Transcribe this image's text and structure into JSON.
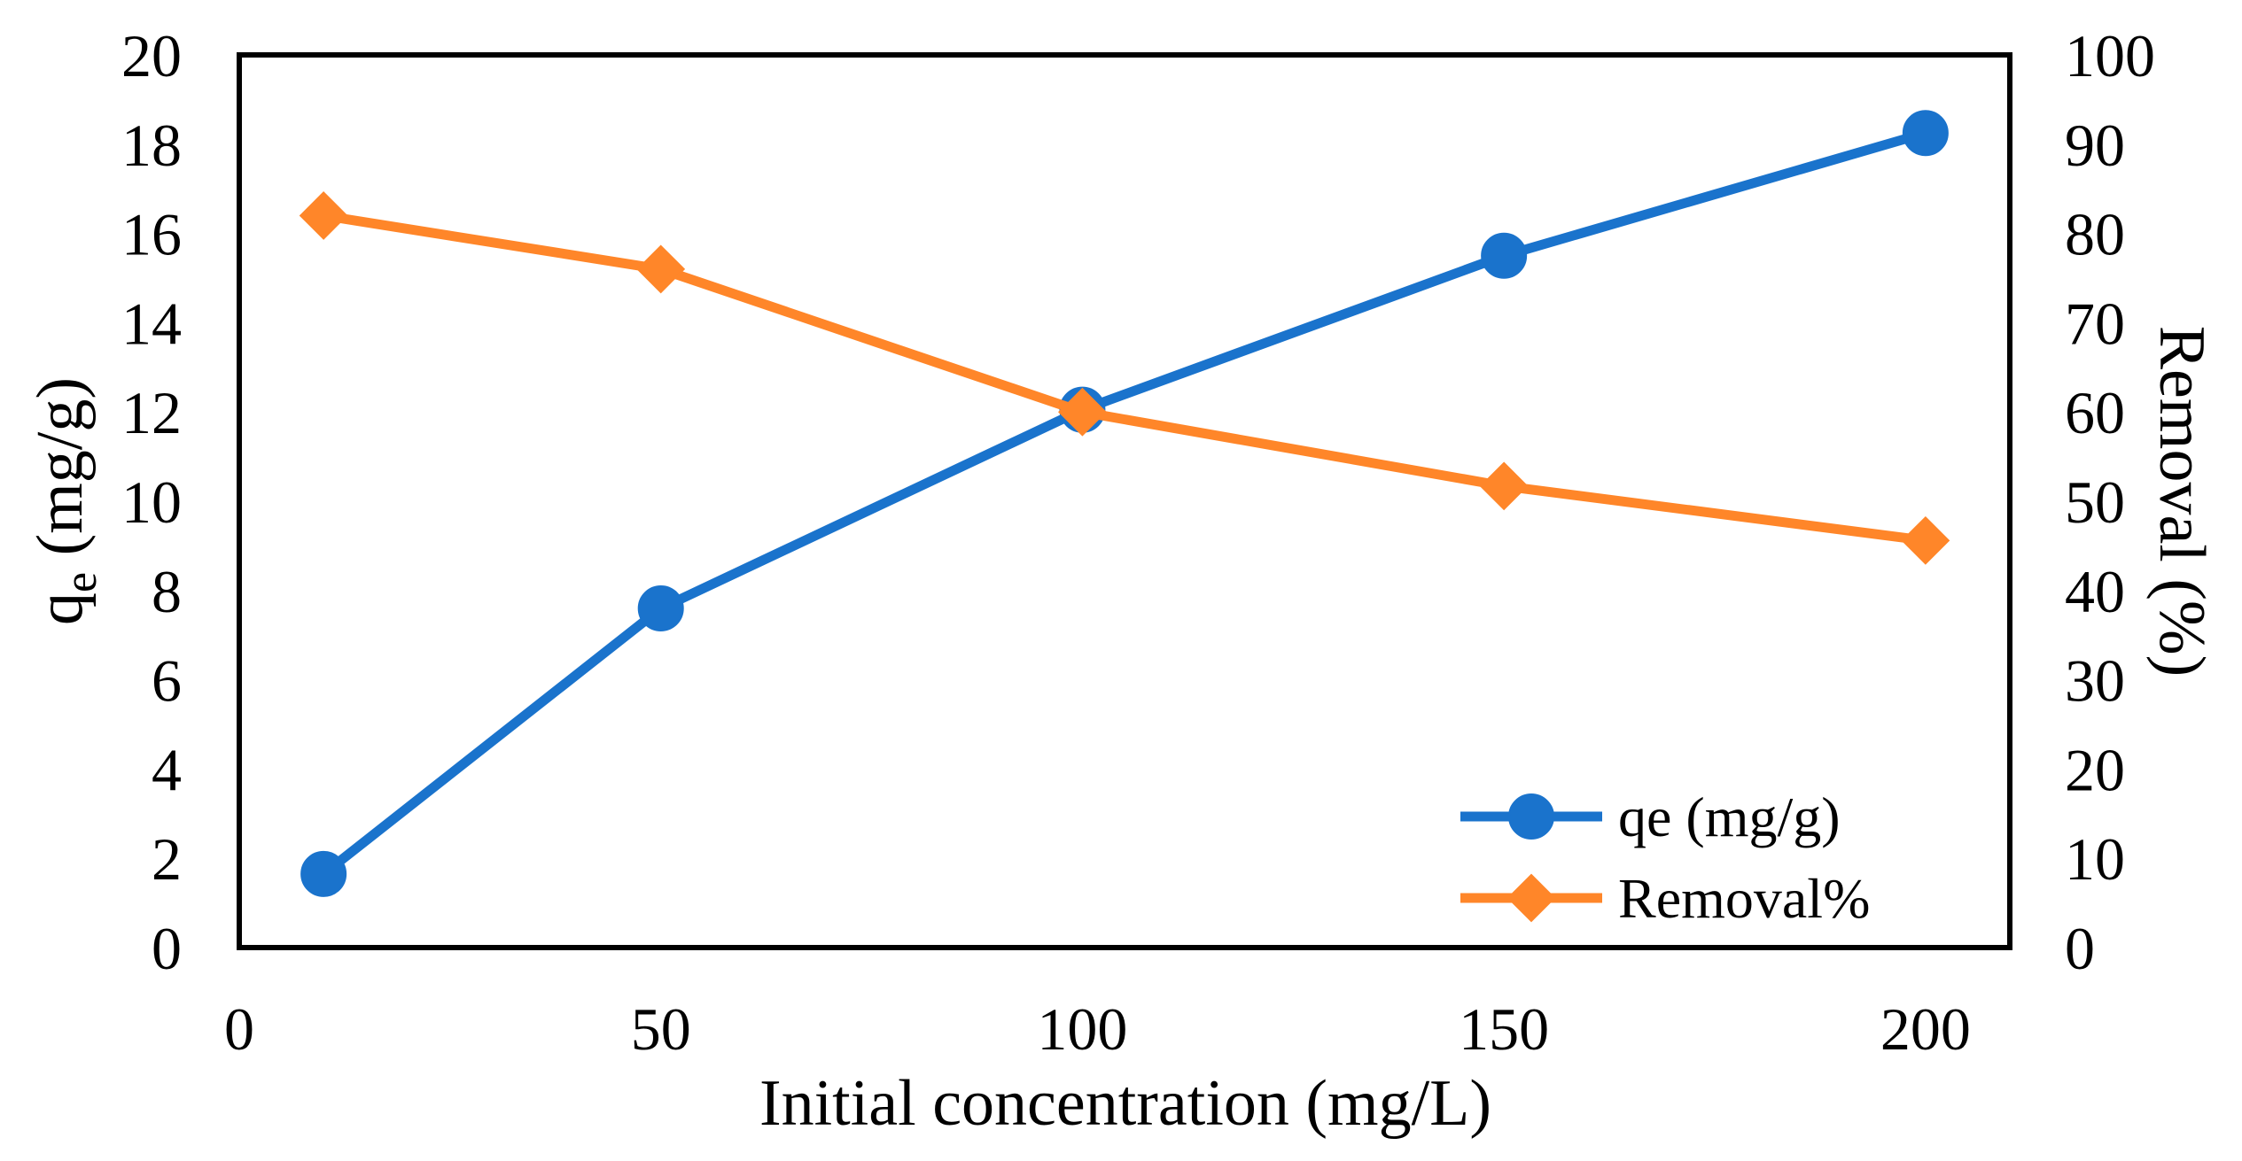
{
  "chart_data": {
    "type": "line",
    "title": "",
    "xlabel": "Initial concentration (mg/L)",
    "ylabel": {
      "main": "q",
      "sub": "e",
      "rest": " (mg/g)"
    },
    "y2label": "Removal (%)",
    "xlim": [
      0,
      210
    ],
    "ylim": [
      0,
      20
    ],
    "y2lim": [
      0,
      100
    ],
    "xticks": [
      "0",
      "50",
      "100",
      "150",
      "200"
    ],
    "yticks": [
      "0",
      "2",
      "4",
      "6",
      "8",
      "10",
      "12",
      "14",
      "16",
      "18",
      "20"
    ],
    "y2ticks": [
      "0",
      "10",
      "20",
      "30",
      "40",
      "50",
      "60",
      "70",
      "80",
      "90",
      "100"
    ],
    "grid": false,
    "legend_position": "bottom-right",
    "x": [
      10,
      50,
      100,
      150,
      200
    ],
    "series": [
      {
        "name": "qe (mg/g)",
        "axis": "left",
        "marker": "circle",
        "color": "#1a73cc",
        "values": [
          1.65,
          7.6,
          12.05,
          15.5,
          18.25
        ]
      },
      {
        "name": "Removal%",
        "axis": "right",
        "marker": "diamond",
        "color": "#ff8629",
        "values": [
          82.0,
          76.0,
          60.0,
          51.7,
          45.6
        ]
      }
    ]
  }
}
